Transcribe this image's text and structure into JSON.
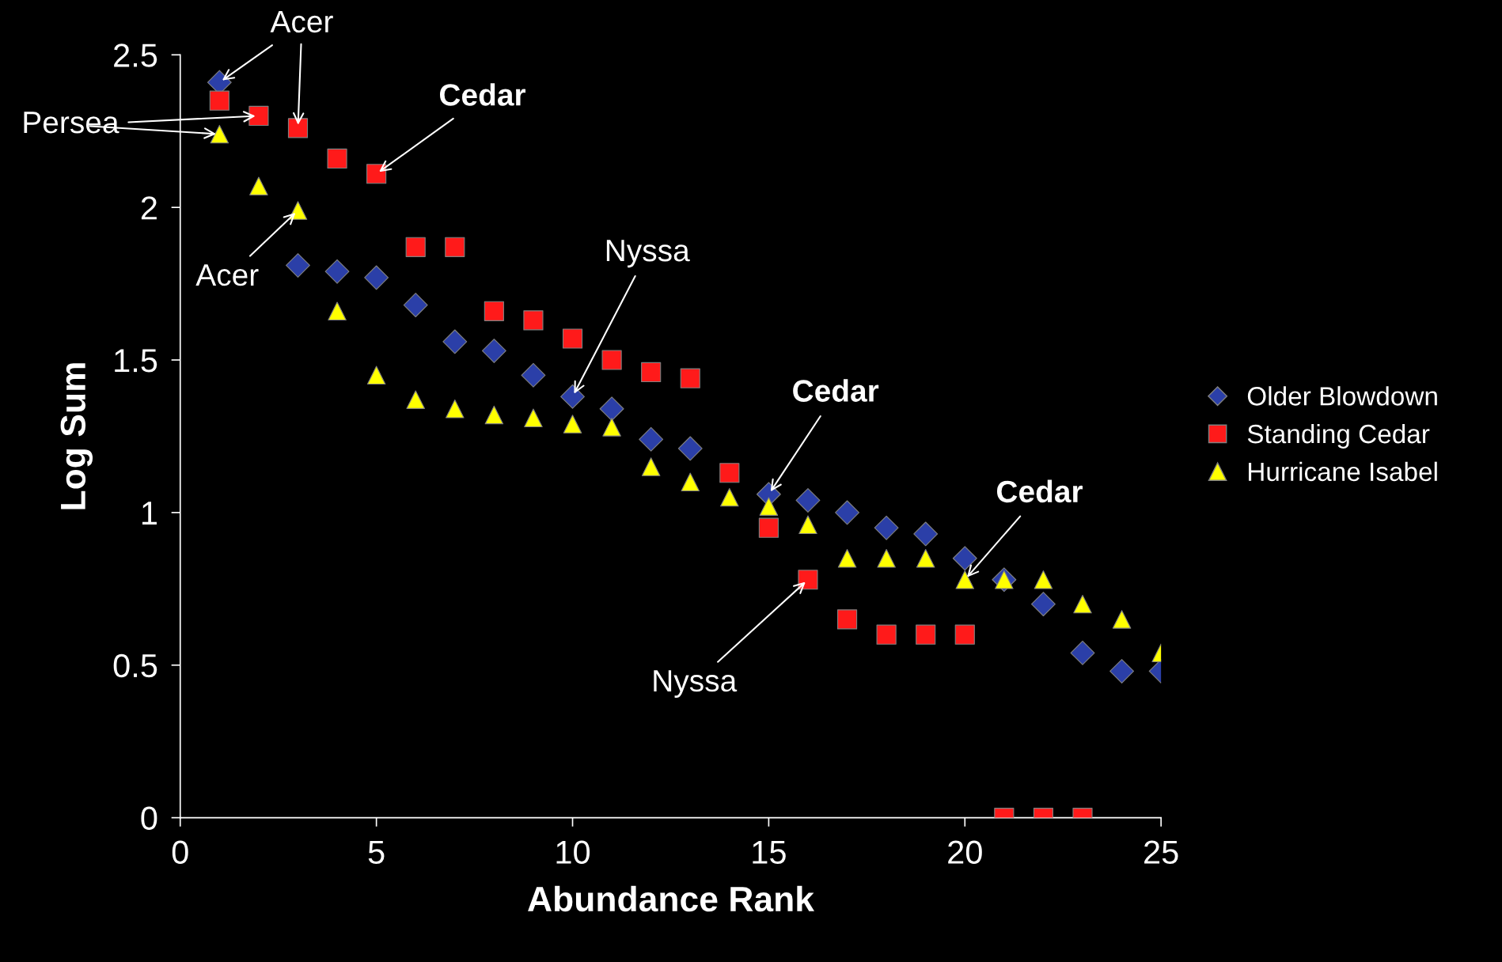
{
  "chart_data": {
    "type": "scatter",
    "xlabel": "Abundance Rank",
    "ylabel": "Log Sum",
    "x": [
      1,
      2,
      3,
      4,
      5,
      6,
      7,
      8,
      9,
      10,
      11,
      12,
      13,
      14,
      15,
      16,
      17,
      18,
      19,
      20,
      21,
      22,
      23,
      24,
      25
    ],
    "xlim": [
      0,
      25
    ],
    "xticks": [
      0,
      5,
      10,
      15,
      20,
      25
    ],
    "ylim": [
      0,
      2.5
    ],
    "yticks": [
      0,
      0.5,
      1,
      1.5,
      2,
      2.5
    ],
    "grid": false,
    "legend": "right",
    "series": [
      {
        "name": "Older Blowdown",
        "color": "#2b3fa8",
        "marker": "diamond",
        "values": [
          2.41,
          null,
          1.81,
          1.79,
          1.77,
          1.68,
          1.56,
          1.53,
          1.45,
          1.38,
          1.34,
          1.24,
          1.21,
          null,
          1.06,
          1.04,
          1.0,
          0.95,
          0.93,
          0.85,
          0.78,
          0.7,
          0.54,
          0.48,
          0.48
        ]
      },
      {
        "name": "Standing Cedar",
        "color": "#ff1a1a",
        "marker": "square",
        "values": [
          2.35,
          2.3,
          2.26,
          2.16,
          2.11,
          1.87,
          1.87,
          1.66,
          1.63,
          1.57,
          1.5,
          1.46,
          1.44,
          1.13,
          0.95,
          0.78,
          0.65,
          0.6,
          0.6,
          0.6,
          0,
          0,
          0,
          null,
          null
        ]
      },
      {
        "name": "Hurricane Isabel",
        "color": "#ffff00",
        "marker": "triangle",
        "values": [
          2.24,
          2.07,
          1.99,
          1.66,
          1.45,
          1.37,
          1.34,
          1.32,
          1.31,
          1.29,
          1.28,
          1.15,
          1.1,
          1.05,
          1.02,
          0.96,
          0.85,
          0.85,
          0.85,
          0.78,
          0.78,
          0.78,
          0.7,
          0.65,
          0.54
        ]
      }
    ],
    "annotations": [
      {
        "text": "Acer",
        "x": 1,
        "y": 2.41
      },
      {
        "text": "Persea",
        "x": 2,
        "y": 2.3
      },
      {
        "text": "Cedar",
        "x": 5,
        "y": 2.11
      },
      {
        "text": "Acer",
        "x": 3,
        "y": 1.99
      },
      {
        "text": "Nyssa",
        "x": 10,
        "y": 1.38
      },
      {
        "text": "Cedar",
        "x": 15,
        "y": 1.06
      },
      {
        "text": "Cedar",
        "x": 20,
        "y": 0.78
      },
      {
        "text": "Nyssa",
        "x": 16,
        "y": 0.78
      }
    ]
  }
}
